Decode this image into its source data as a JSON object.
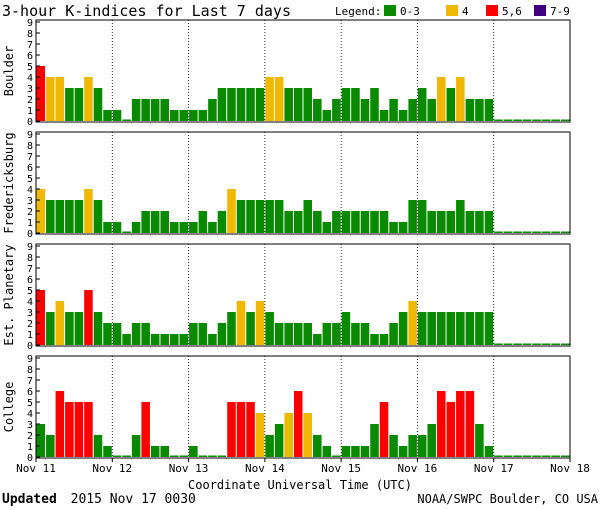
{
  "chart_data": {
    "type": "bar",
    "title": "3-hour K-indices for Last 7 days",
    "legend": {
      "label": "Legend:",
      "placement": "top-right",
      "items": [
        {
          "label": "0-3",
          "color": "#0a8a00"
        },
        {
          "label": "4",
          "color": "#f0b800"
        },
        {
          "label": "5,6",
          "color": "#ff0000"
        },
        {
          "label": "7-9",
          "color": "#400080"
        }
      ]
    },
    "xlabel": "Coordinate Universal Time (UTC)",
    "x_ticks": [
      "Nov 11",
      "Nov 12",
      "Nov 13",
      "Nov 14",
      "Nov 15",
      "Nov 16",
      "Nov 17",
      "Nov 18"
    ],
    "bins_per_day": 8,
    "ylim": [
      0,
      9
    ],
    "y_ticks": [
      "0",
      "1",
      "2",
      "3",
      "4",
      "5",
      "6",
      "7",
      "8",
      "9"
    ],
    "series": [
      {
        "name": "Boulder",
        "values": [
          5,
          4,
          4,
          3,
          3,
          4,
          3,
          1,
          1,
          0,
          2,
          2,
          2,
          2,
          1,
          1,
          1,
          1,
          2,
          3,
          3,
          3,
          3,
          3,
          4,
          4,
          3,
          3,
          3,
          2,
          1,
          2,
          3,
          3,
          2,
          3,
          1,
          2,
          1,
          2,
          3,
          2,
          4,
          3,
          4,
          2,
          2,
          2
        ]
      },
      {
        "name": "Fredericksburg",
        "values": [
          4,
          3,
          3,
          3,
          3,
          4,
          3,
          1,
          1,
          0,
          1,
          2,
          2,
          2,
          1,
          1,
          1,
          2,
          1,
          2,
          4,
          3,
          3,
          3,
          3,
          3,
          2,
          2,
          3,
          2,
          1,
          2,
          2,
          2,
          2,
          2,
          2,
          1,
          1,
          3,
          3,
          2,
          2,
          2,
          3,
          2,
          2,
          2
        ]
      },
      {
        "name": "Est. Planetary",
        "values": [
          5,
          3,
          4,
          3,
          3,
          5,
          3,
          2,
          2,
          1,
          2,
          2,
          1,
          1,
          1,
          1,
          2,
          2,
          1,
          2,
          3,
          4,
          3,
          4,
          3,
          2,
          2,
          2,
          2,
          1,
          2,
          2,
          3,
          2,
          2,
          1,
          1,
          2,
          3,
          4,
          3,
          3,
          3,
          3,
          3,
          3,
          3,
          3
        ]
      },
      {
        "name": "College",
        "values": [
          3,
          2,
          6,
          5,
          5,
          5,
          2,
          1,
          0,
          0,
          2,
          5,
          1,
          1,
          0,
          0,
          1,
          0,
          0,
          0,
          5,
          5,
          5,
          4,
          2,
          3,
          4,
          6,
          4,
          2,
          1,
          0,
          1,
          1,
          1,
          3,
          5,
          2,
          1,
          2,
          2,
          3,
          6,
          5,
          6,
          6,
          3,
          1
        ]
      }
    ]
  },
  "footer": {
    "updated_label": "Updated",
    "updated_value": "2015 Nov 17 0030",
    "credit": "NOAA/SWPC Boulder, CO USA"
  }
}
